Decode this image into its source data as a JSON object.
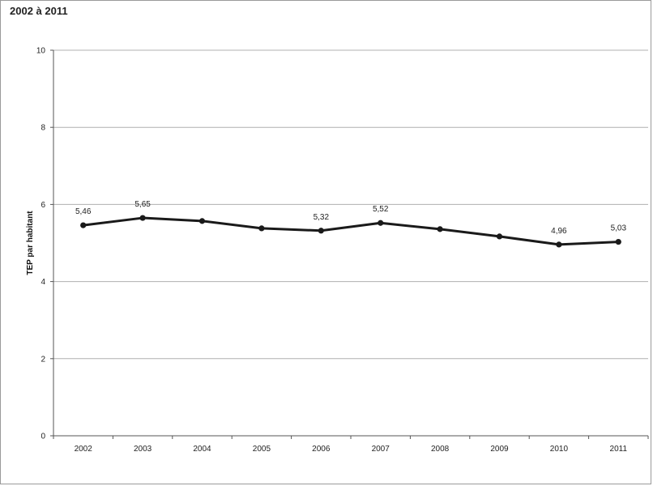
{
  "chart_data": {
    "type": "line",
    "title": "2002 à 2011",
    "xlabel": "",
    "ylabel": "TEP par habitant",
    "ylim": [
      0,
      10
    ],
    "yticks": [
      "0",
      "2",
      "4",
      "6",
      "8",
      "10"
    ],
    "categories": [
      "2002",
      "2003",
      "2004",
      "2005",
      "2006",
      "2007",
      "2008",
      "2009",
      "2010",
      "2011"
    ],
    "series": [
      {
        "values": [
          5.46,
          5.65,
          5.57,
          5.38,
          5.32,
          5.52,
          5.36,
          5.17,
          4.96,
          5.03
        ],
        "labels": [
          "5,46",
          "5,65",
          "",
          "",
          "5,32",
          "5,52",
          "",
          "",
          "4,96",
          "5,03"
        ]
      }
    ],
    "grid": true,
    "colors": {
      "line": "#1a1a1a",
      "grid": "#b0b0b0",
      "background": "#ffffff"
    }
  }
}
